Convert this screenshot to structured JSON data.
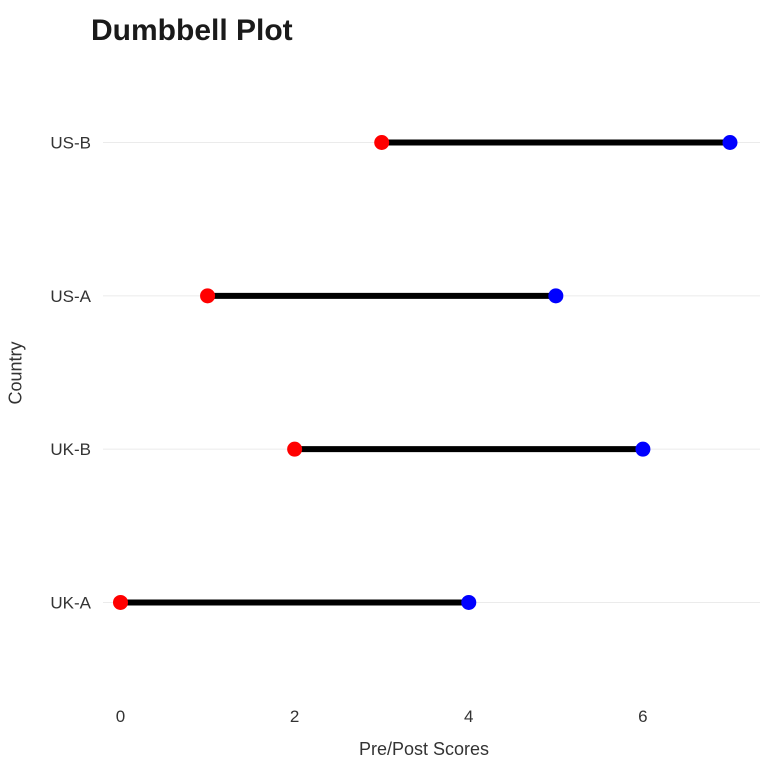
{
  "chart_data": {
    "type": "dumbbell",
    "title": "Dumbbell Plot",
    "xlabel": "Pre/Post Scores",
    "ylabel": "Country",
    "xlim": [
      0,
      7
    ],
    "x_ticks": [
      0,
      2,
      4,
      6
    ],
    "categories": [
      "UK-A",
      "UK-B",
      "US-A",
      "US-B"
    ],
    "series": [
      {
        "values": [
          0,
          2,
          1,
          3
        ],
        "color": "#ff0000"
      },
      {
        "values": [
          4,
          6,
          5,
          7
        ],
        "color": "#0000ff"
      }
    ],
    "segment_color": "#000000",
    "grid": true,
    "legend": "none"
  }
}
